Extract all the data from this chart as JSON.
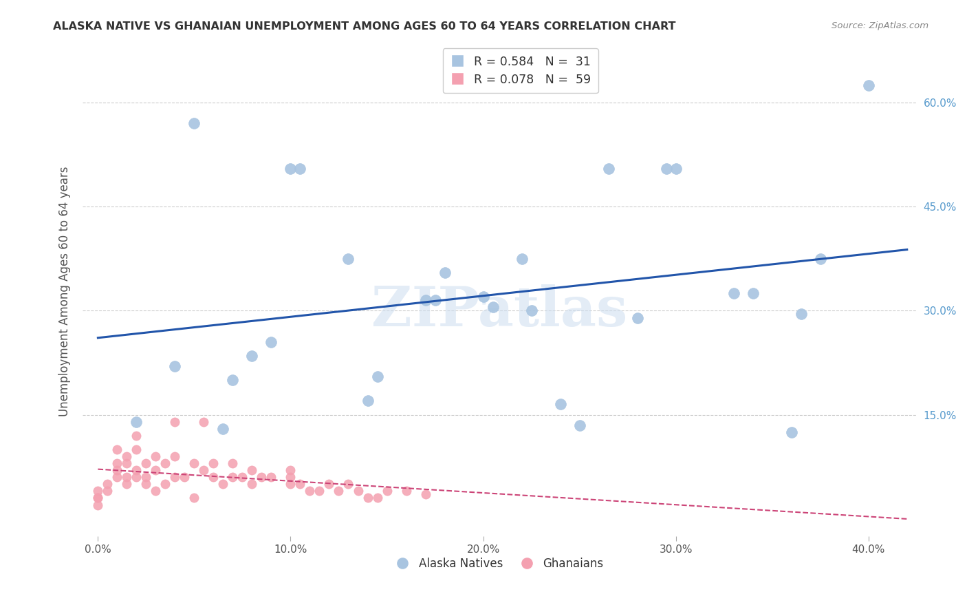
{
  "title": "ALASKA NATIVE VS GHANAIAN UNEMPLOYMENT AMONG AGES 60 TO 64 YEARS CORRELATION CHART",
  "source": "Source: ZipAtlas.com",
  "xlabel_vals": [
    0.0,
    0.1,
    0.2,
    0.3,
    0.4
  ],
  "xlabel_ticks": [
    "0.0%",
    "10.0%",
    "20.0%",
    "30.0%",
    "40.0%"
  ],
  "ylabel_vals": [
    0.15,
    0.3,
    0.45,
    0.6
  ],
  "ylabel_ticks": [
    "15.0%",
    "30.0%",
    "45.0%",
    "60.0%"
  ],
  "ylabel_label": "Unemployment Among Ages 60 to 64 years",
  "blue_R": 0.584,
  "blue_N": 31,
  "pink_R": 0.078,
  "pink_N": 59,
  "blue_scatter_color": "#a8c4e0",
  "blue_line_color": "#2255aa",
  "pink_scatter_color": "#f4a0b0",
  "pink_line_color": "#cc4477",
  "watermark": "ZIPatlas",
  "background_color": "#ffffff",
  "grid_color": "#cccccc",
  "title_color": "#333333",
  "source_color": "#888888",
  "tick_color_y": "#5599cc",
  "tick_color_x": "#555555",
  "blue_x": [
    0.02,
    0.04,
    0.05,
    0.065,
    0.07,
    0.08,
    0.09,
    0.1,
    0.105,
    0.13,
    0.14,
    0.145,
    0.17,
    0.175,
    0.18,
    0.2,
    0.205,
    0.22,
    0.225,
    0.24,
    0.25,
    0.265,
    0.28,
    0.295,
    0.3,
    0.33,
    0.34,
    0.36,
    0.365,
    0.375,
    0.4
  ],
  "blue_y": [
    0.14,
    0.22,
    0.57,
    0.13,
    0.2,
    0.235,
    0.255,
    0.505,
    0.505,
    0.375,
    0.17,
    0.205,
    0.315,
    0.315,
    0.355,
    0.32,
    0.305,
    0.375,
    0.3,
    0.165,
    0.135,
    0.505,
    0.29,
    0.505,
    0.505,
    0.325,
    0.325,
    0.125,
    0.295,
    0.375,
    0.625
  ],
  "pink_x": [
    0.0,
    0.0,
    0.0,
    0.0,
    0.005,
    0.005,
    0.01,
    0.01,
    0.01,
    0.01,
    0.015,
    0.015,
    0.015,
    0.015,
    0.02,
    0.02,
    0.02,
    0.02,
    0.025,
    0.025,
    0.025,
    0.03,
    0.03,
    0.03,
    0.035,
    0.035,
    0.04,
    0.04,
    0.04,
    0.045,
    0.05,
    0.05,
    0.055,
    0.055,
    0.06,
    0.06,
    0.065,
    0.07,
    0.07,
    0.075,
    0.08,
    0.08,
    0.085,
    0.09,
    0.1,
    0.1,
    0.1,
    0.105,
    0.11,
    0.115,
    0.12,
    0.125,
    0.13,
    0.135,
    0.14,
    0.145,
    0.15,
    0.16,
    0.17
  ],
  "pink_y": [
    0.04,
    0.03,
    0.02,
    0.03,
    0.05,
    0.04,
    0.06,
    0.08,
    0.1,
    0.07,
    0.08,
    0.06,
    0.05,
    0.09,
    0.07,
    0.06,
    0.1,
    0.12,
    0.06,
    0.05,
    0.08,
    0.04,
    0.07,
    0.09,
    0.05,
    0.08,
    0.14,
    0.09,
    0.06,
    0.06,
    0.08,
    0.03,
    0.07,
    0.14,
    0.06,
    0.08,
    0.05,
    0.08,
    0.06,
    0.06,
    0.05,
    0.07,
    0.06,
    0.06,
    0.07,
    0.06,
    0.05,
    0.05,
    0.04,
    0.04,
    0.05,
    0.04,
    0.05,
    0.04,
    0.03,
    0.03,
    0.04,
    0.04,
    0.035
  ]
}
